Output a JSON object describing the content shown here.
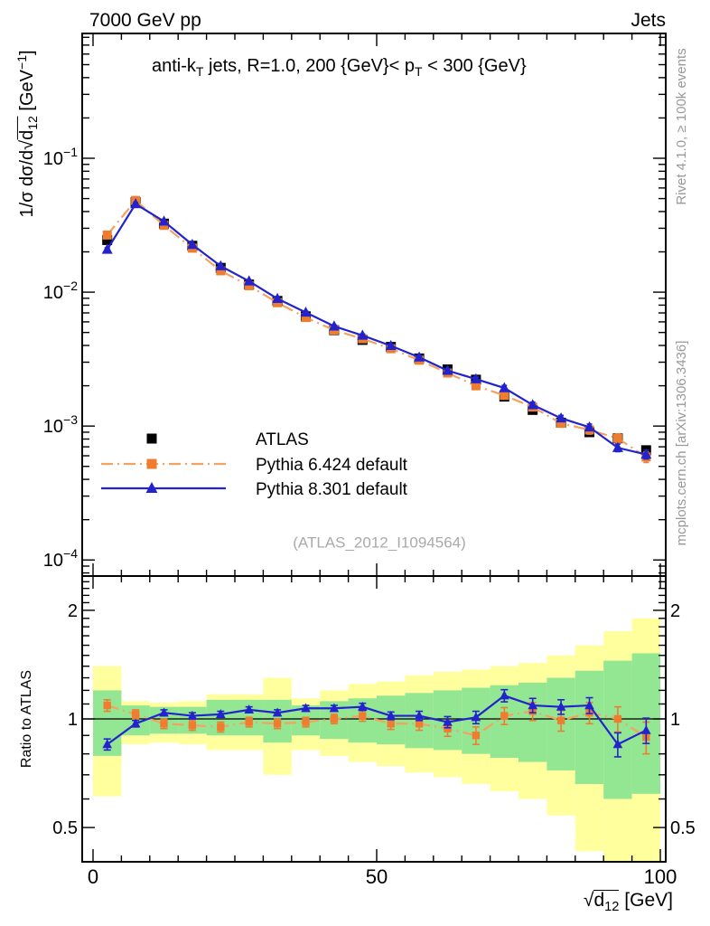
{
  "header": {
    "left": "7000 GeV pp",
    "right": "Jets"
  },
  "side_texts": {
    "rivet": "Rivet 4.1.0, ≥ 100k events",
    "mcplots": "mcplots.cern.ch [arXiv:1306.3436]"
  },
  "watermark": "(ATLAS_2012_I1094564)",
  "chart_data": {
    "type": "line",
    "panel_title_segments": [
      {
        "t": "anti-k"
      },
      {
        "t": "T",
        "sub": 1
      },
      {
        "t": " jets, R=1.0, 200 {GeV}< p"
      },
      {
        "t": "T",
        "sub": 1
      },
      {
        "t": " < 300 {GeV}"
      }
    ],
    "ylabel_segments": [
      {
        "t": "1/σ dσ/d"
      },
      {
        "t": "√"
      },
      {
        "ol": 1,
        "parts": [
          {
            "t": "d"
          },
          {
            "t": "12",
            "sub": 1
          }
        ]
      },
      {
        "t": " [GeV"
      },
      {
        "t": "−1",
        "sup": 1
      },
      {
        "t": "]"
      }
    ],
    "xlabel_segments": [
      {
        "t": "√"
      },
      {
        "ol": 1,
        "parts": [
          {
            "t": "d"
          },
          {
            "t": "12",
            "sub": 1
          }
        ]
      },
      {
        "t": " [GeV]"
      }
    ],
    "ratio_ylabel": "Ratio to ATLAS",
    "x_axis": {
      "major_ticks": [
        0,
        50,
        100
      ],
      "tick_labels": [
        "0",
        "50",
        "100"
      ],
      "minor_step": 5,
      "unit": "GeV"
    },
    "main_y_axis": {
      "scale": "log",
      "log_top": -0.068,
      "log_bottom": -4.12,
      "decade_labels": [
        -1,
        -2,
        -3,
        -4
      ]
    },
    "ratio_y_axis": {
      "scale": "log",
      "log_top": 0.396,
      "log_bottom": -0.396,
      "labels": [
        {
          "v": 2,
          "t": "2"
        },
        {
          "v": 1,
          "t": "1"
        },
        {
          "v": 0.5,
          "t": "0.5"
        }
      ]
    },
    "x": [
      2.5,
      7.5,
      12.5,
      17.5,
      22.5,
      27.5,
      32.5,
      37.5,
      42.5,
      47.5,
      52.5,
      57.5,
      62.5,
      67.5,
      72.5,
      77.5,
      82.5,
      87.5,
      92.5,
      97.5
    ],
    "series": [
      {
        "name": "ATLAS",
        "marker": "square",
        "color": "#000000",
        "line": "none",
        "values": [
          0.0245,
          0.047,
          0.0325,
          0.0222,
          0.0152,
          0.0114,
          0.0086,
          0.0066,
          0.0052,
          0.0044,
          0.0039,
          0.0032,
          0.00265,
          0.00222,
          0.00166,
          0.00132,
          0.00106,
          0.0009,
          0.00081,
          0.00066
        ],
        "rel_err": [
          0.02,
          0.02,
          0.02,
          0.02,
          0.02,
          0.02,
          0.02,
          0.02,
          0.02,
          0.02,
          0.02,
          0.025,
          0.025,
          0.03,
          0.03,
          0.035,
          0.04,
          0.045,
          0.05,
          0.055
        ]
      },
      {
        "name": "Pythia 6.424 default",
        "marker": "square",
        "color": "#ee7d30",
        "line": "dashdot",
        "line_color": "#f5a261",
        "ratio_to_atlas": [
          1.09,
          1.03,
          0.97,
          0.96,
          0.95,
          0.98,
          0.97,
          0.98,
          1.0,
          1.02,
          0.97,
          0.97,
          0.94,
          0.9,
          1.02,
          1.05,
          0.99,
          1.04,
          1.0,
          0.89
        ],
        "ratio_err": [
          0.04,
          0.03,
          0.03,
          0.03,
          0.03,
          0.03,
          0.03,
          0.03,
          0.03,
          0.035,
          0.035,
          0.04,
          0.045,
          0.05,
          0.055,
          0.06,
          0.065,
          0.07,
          0.08,
          0.09
        ]
      },
      {
        "name": "Pythia 8.301 default",
        "marker": "triangle",
        "color": "#2323cd",
        "line": "solid",
        "line_color": "#2323cd",
        "ratio_to_atlas": [
          0.85,
          0.97,
          1.04,
          1.02,
          1.03,
          1.06,
          1.04,
          1.07,
          1.07,
          1.08,
          1.02,
          1.02,
          0.98,
          1.01,
          1.16,
          1.09,
          1.08,
          1.09,
          0.85,
          0.93
        ],
        "ratio_err": [
          0.03,
          0.02,
          0.02,
          0.02,
          0.02,
          0.02,
          0.02,
          0.02,
          0.02,
          0.025,
          0.025,
          0.03,
          0.035,
          0.04,
          0.045,
          0.05,
          0.05,
          0.055,
          0.065,
          0.075
        ]
      }
    ],
    "bands": {
      "bin_edges": [
        0,
        5,
        10,
        15,
        20,
        25,
        30,
        35,
        40,
        45,
        50,
        55,
        60,
        65,
        70,
        75,
        80,
        85,
        90,
        95,
        100
      ],
      "yellow_hi": [
        1.4,
        1.12,
        1.11,
        1.12,
        1.17,
        1.17,
        1.3,
        1.14,
        1.2,
        1.25,
        1.27,
        1.32,
        1.35,
        1.37,
        1.4,
        1.43,
        1.5,
        1.6,
        1.75,
        1.9
      ],
      "yellow_lo": [
        0.61,
        0.85,
        0.86,
        0.85,
        0.82,
        0.82,
        0.7,
        0.82,
        0.79,
        0.76,
        0.74,
        0.71,
        0.69,
        0.66,
        0.63,
        0.6,
        0.54,
        0.43,
        0.36,
        0.38
      ],
      "green_hi": [
        1.2,
        1.09,
        1.08,
        1.08,
        1.13,
        1.13,
        1.13,
        1.09,
        1.12,
        1.14,
        1.16,
        1.18,
        1.2,
        1.22,
        1.24,
        1.26,
        1.3,
        1.36,
        1.45,
        1.52
      ],
      "green_lo": [
        0.79,
        0.9,
        0.91,
        0.91,
        0.9,
        0.9,
        0.86,
        0.9,
        0.88,
        0.86,
        0.85,
        0.83,
        0.82,
        0.8,
        0.78,
        0.76,
        0.72,
        0.66,
        0.6,
        0.62
      ],
      "colors": {
        "yellow": "#ffff9e",
        "green": "#93e793"
      }
    },
    "unity_line_color": "#000000"
  }
}
